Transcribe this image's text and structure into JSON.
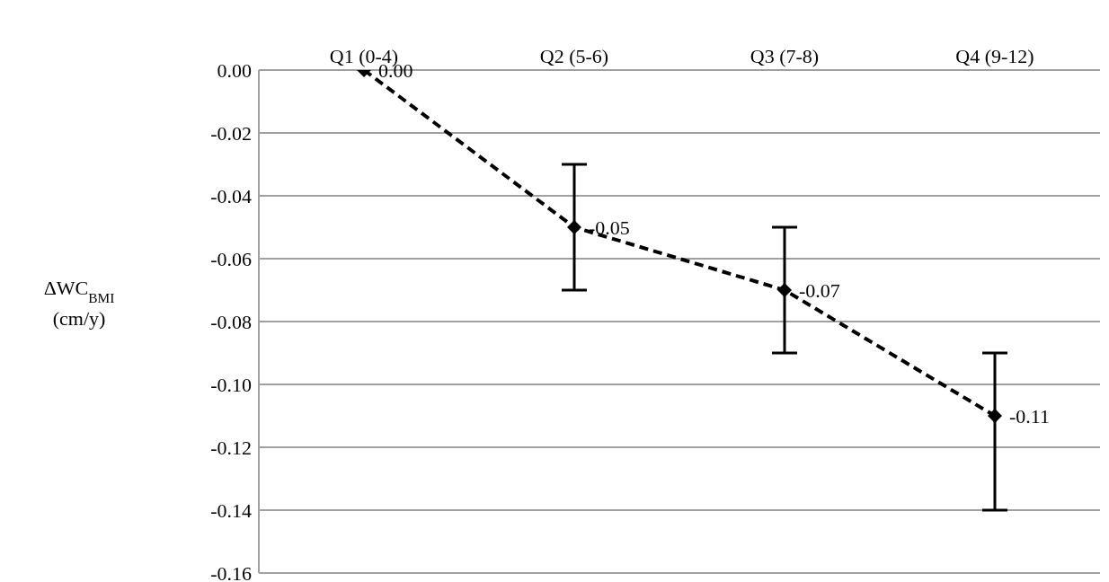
{
  "chart_data": {
    "type": "line",
    "ylabel": "ΔWC$_{BMI}$ (cm/y)",
    "categories": [
      "Q1 (0-4)",
      "Q2 (5-6)",
      "Q3 (7-8)",
      "Q4 (9-12)"
    ],
    "series": [
      {
        "color": "#000000",
        "values": [
          0.0,
          -0.05,
          -0.07,
          -0.11
        ],
        "errors": [
          null,
          0.02,
          0.02,
          [
            -0.14,
            -0.09
          ]
        ],
        "value_labels": [
          "0.00",
          "-0.05",
          "-0.07",
          "-0.11"
        ]
      }
    ],
    "ylim": [
      -0.16,
      0
    ],
    "yticks": [
      {
        "value": 0,
        "label": "0.00"
      },
      {
        "value": -0.02,
        "label": "-0.02"
      },
      {
        "value": -0.04,
        "label": "-0.04"
      },
      {
        "value": -0.06,
        "label": "-0.06"
      },
      {
        "value": -0.08,
        "label": "-0.08"
      },
      {
        "value": -0.1,
        "label": "-0.10"
      },
      {
        "value": -0.12,
        "label": "-0.12"
      },
      {
        "value": -0.14,
        "label": "-0.14"
      },
      {
        "value": -0.16,
        "label": "-0.16"
      }
    ],
    "grid": "y",
    "legend": false,
    "marker": "diamond",
    "line_style": "dashed"
  }
}
